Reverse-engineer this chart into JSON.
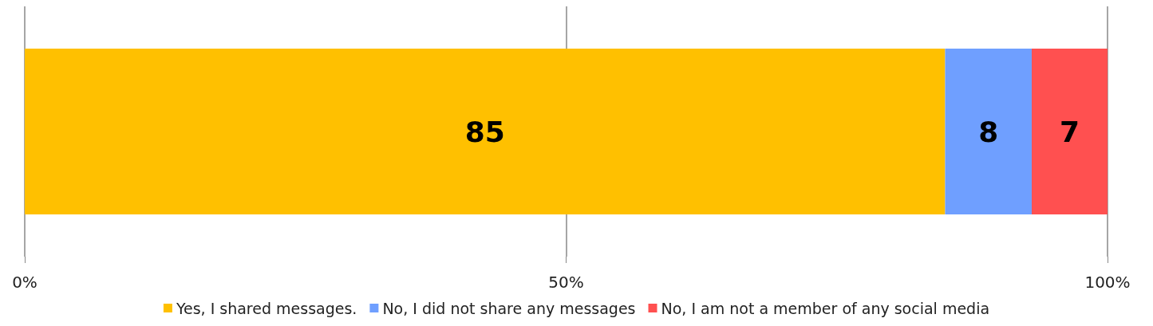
{
  "chart_data": {
    "type": "bar",
    "orientation": "horizontal",
    "stacked": true,
    "categories": [
      null
    ],
    "series": [
      {
        "name": "Yes, I shared messages.",
        "color": "#ffc000",
        "values": [
          85
        ]
      },
      {
        "name": "No, I did not share any messages",
        "color": "#6f9fff",
        "values": [
          8
        ]
      },
      {
        "name": "No, I am not a member of any social media",
        "color": "#ff5050",
        "values": [
          7
        ]
      }
    ],
    "xlim": [
      0,
      100
    ],
    "xticks": [
      {
        "value": 0,
        "label": "0%"
      },
      {
        "value": 50,
        "label": "50%"
      },
      {
        "value": 100,
        "label": "100%"
      }
    ],
    "grid": "x",
    "legend": "bottom",
    "data_labels": true
  }
}
